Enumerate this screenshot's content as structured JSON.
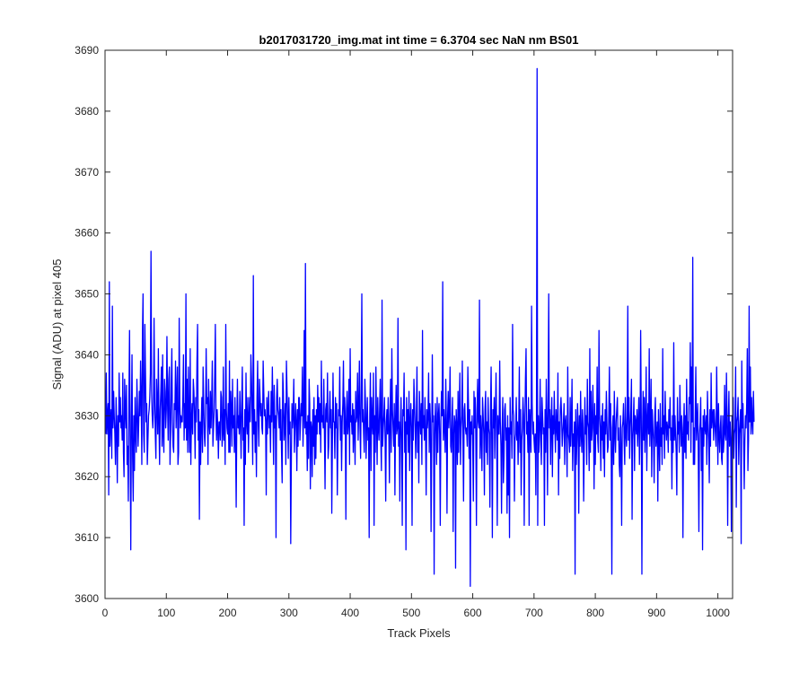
{
  "chart_data": {
    "type": "line",
    "title": "b2017031720_img.mat int time = 6.3704 sec  NaN nm BS01",
    "xlabel": "Track Pixels",
    "ylabel": "Signal (ADU) at pixel 405",
    "xlim": [
      0,
      1024
    ],
    "ylim": [
      3600,
      3690
    ],
    "x_ticks": [
      0,
      100,
      200,
      300,
      400,
      500,
      600,
      700,
      800,
      900,
      1000
    ],
    "y_ticks": [
      3600,
      3610,
      3620,
      3630,
      3640,
      3650,
      3660,
      3670,
      3680,
      3690
    ],
    "x_tick_labels": [
      "0",
      "100",
      "200",
      "300",
      "400",
      "500",
      "600",
      "700",
      "800",
      "900",
      "1000"
    ],
    "y_tick_labels": [
      "3600",
      "3610",
      "3620",
      "3630",
      "3640",
      "3650",
      "3660",
      "3670",
      "3680",
      "3690"
    ],
    "grid": false,
    "series": [
      {
        "color": "#0000ff",
        "x_start": 1,
        "x_step": 1,
        "values": [
          3627,
          3637,
          3627,
          3630,
          3632,
          3617,
          3652,
          3625,
          3629,
          3631,
          3623,
          3648,
          3628,
          3634,
          3630,
          3627,
          3622,
          3633,
          3628,
          3619,
          3630,
          3625,
          3637,
          3629,
          3633,
          3628,
          3630,
          3626,
          3637,
          3624,
          3620,
          3636,
          3631,
          3628,
          3635,
          3622,
          3625,
          3616,
          3633,
          3644,
          3626,
          3608,
          3629,
          3640,
          3623,
          3616,
          3630,
          3621,
          3633,
          3627,
          3624,
          3636,
          3631,
          3625,
          3629,
          3634,
          3630,
          3639,
          3633,
          3622,
          3643,
          3650,
          3627,
          3624,
          3645,
          3637,
          3629,
          3632,
          3622,
          3626,
          3630,
          3631,
          3633,
          3637,
          3657,
          3634,
          3630,
          3628,
          3631,
          3646,
          3633,
          3627,
          3623,
          3636,
          3632,
          3627,
          3641,
          3629,
          3622,
          3631,
          3634,
          3638,
          3625,
          3640,
          3627,
          3624,
          3636,
          3634,
          3628,
          3631,
          3643,
          3632,
          3626,
          3636,
          3638,
          3622,
          3627,
          3635,
          3641,
          3629,
          3625,
          3624,
          3632,
          3631,
          3639,
          3628,
          3633,
          3638,
          3622,
          3624,
          3646,
          3632,
          3628,
          3630,
          3629,
          3629,
          3633,
          3640,
          3626,
          3632,
          3628,
          3650,
          3626,
          3636,
          3624,
          3638,
          3629,
          3624,
          3641,
          3622,
          3629,
          3632,
          3627,
          3636,
          3634,
          3630,
          3623,
          3633,
          3629,
          3639,
          3645,
          3626,
          3631,
          3613,
          3629,
          3622,
          3629,
          3633,
          3624,
          3638,
          3632,
          3627,
          3625,
          3630,
          3641,
          3632,
          3633,
          3622,
          3636,
          3629,
          3627,
          3634,
          3628,
          3632,
          3639,
          3625,
          3628,
          3631,
          3637,
          3645,
          3630,
          3626,
          3631,
          3628,
          3623,
          3629,
          3629,
          3626,
          3634,
          3633,
          3625,
          3627,
          3638,
          3626,
          3631,
          3622,
          3645,
          3631,
          3628,
          3627,
          3632,
          3624,
          3639,
          3624,
          3634,
          3631,
          3625,
          3636,
          3628,
          3630,
          3624,
          3633,
          3626,
          3615,
          3629,
          3636,
          3628,
          3630,
          3627,
          3634,
          3629,
          3623,
          3632,
          3638,
          3626,
          3628,
          3612,
          3631,
          3622,
          3637,
          3629,
          3627,
          3633,
          3624,
          3630,
          3633,
          3629,
          3640,
          3636,
          3630,
          3622,
          3653,
          3627,
          3631,
          3624,
          3629,
          3620,
          3633,
          3639,
          3629,
          3625,
          3636,
          3633,
          3630,
          3632,
          3628,
          3627,
          3639,
          3634,
          3630,
          3631,
          3629,
          3617,
          3633,
          3627,
          3631,
          3634,
          3628,
          3630,
          3624,
          3634,
          3629,
          3638,
          3631,
          3622,
          3635,
          3628,
          3630,
          3610,
          3633,
          3636,
          3631,
          3630,
          3628,
          3633,
          3626,
          3631,
          3624,
          3619,
          3637,
          3634,
          3626,
          3628,
          3632,
          3622,
          3639,
          3634,
          3630,
          3623,
          3633,
          3627,
          3629,
          3609,
          3623,
          3632,
          3628,
          3630,
          3636,
          3624,
          3628,
          3632,
          3629,
          3621,
          3631,
          3625,
          3633,
          3633,
          3626,
          3629,
          3632,
          3630,
          3638,
          3625,
          3630,
          3644,
          3628,
          3655,
          3627,
          3629,
          3621,
          3630,
          3623,
          3636,
          3632,
          3618,
          3629,
          3628,
          3620,
          3631,
          3625,
          3633,
          3622,
          3630,
          3623,
          3631,
          3627,
          3635,
          3629,
          3633,
          3627,
          3632,
          3624,
          3639,
          3629,
          3630,
          3628,
          3636,
          3627,
          3618,
          3631,
          3632,
          3629,
          3637,
          3623,
          3625,
          3630,
          3634,
          3628,
          3631,
          3614,
          3626,
          3637,
          3629,
          3629,
          3623,
          3633,
          3628,
          3632,
          3617,
          3626,
          3631,
          3630,
          3638,
          3626,
          3630,
          3621,
          3629,
          3632,
          3639,
          3627,
          3633,
          3629,
          3613,
          3631,
          3634,
          3627,
          3629,
          3636,
          3622,
          3641,
          3629,
          3630,
          3627,
          3632,
          3624,
          3631,
          3628,
          3622,
          3634,
          3629,
          3630,
          3637,
          3626,
          3631,
          3639,
          3628,
          3623,
          3634,
          3650,
          3629,
          3631,
          3627,
          3624,
          3636,
          3632,
          3623,
          3629,
          3633,
          3626,
          3628,
          3610,
          3630,
          3637,
          3621,
          3633,
          3629,
          3627,
          3637,
          3612,
          3630,
          3624,
          3638,
          3629,
          3622,
          3633,
          3628,
          3626,
          3631,
          3636,
          3626,
          3621,
          3649,
          3625,
          3628,
          3630,
          3633,
          3626,
          3616,
          3629,
          3631,
          3627,
          3633,
          3628,
          3619,
          3630,
          3636,
          3624,
          3641,
          3631,
          3628,
          3625,
          3632,
          3617,
          3629,
          3635,
          3627,
          3628,
          3646,
          3625,
          3629,
          3616,
          3628,
          3633,
          3626,
          3612,
          3631,
          3630,
          3637,
          3624,
          3629,
          3608,
          3633,
          3627,
          3631,
          3624,
          3634,
          3621,
          3629,
          3632,
          3628,
          3612,
          3631,
          3626,
          3636,
          3632,
          3628,
          3623,
          3630,
          3638,
          3624,
          3629,
          3619,
          3634,
          3630,
          3627,
          3632,
          3622,
          3644,
          3628,
          3630,
          3626,
          3633,
          3627,
          3617,
          3631,
          3628,
          3630,
          3637,
          3624,
          3632,
          3629,
          3611,
          3625,
          3640,
          3629,
          3630,
          3604,
          3627,
          3632,
          3628,
          3622,
          3633,
          3624,
          3630,
          3632,
          3627,
          3612,
          3629,
          3634,
          3630,
          3652,
          3626,
          3631,
          3628,
          3624,
          3636,
          3629,
          3614,
          3630,
          3634,
          3628,
          3631,
          3638,
          3625,
          3624,
          3629,
          3633,
          3611,
          3627,
          3630,
          3629,
          3605,
          3631,
          3628,
          3622,
          3634,
          3624,
          3631,
          3637,
          3622,
          3628,
          3630,
          3639,
          3626,
          3616,
          3631,
          3632,
          3628,
          3627,
          3628,
          3625,
          3638,
          3632,
          3623,
          3631,
          3602,
          3629,
          3627,
          3630,
          3625,
          3616,
          3634,
          3628,
          3633,
          3627,
          3612,
          3631,
          3636,
          3629,
          3628,
          3649,
          3623,
          3630,
          3627,
          3621,
          3633,
          3630,
          3627,
          3617,
          3631,
          3634,
          3624,
          3629,
          3622,
          3633,
          3628,
          3627,
          3615,
          3631,
          3638,
          3626,
          3610,
          3631,
          3628,
          3633,
          3623,
          3630,
          3637,
          3628,
          3612,
          3630,
          3627,
          3627,
          3639,
          3629,
          3625,
          3614,
          3628,
          3633,
          3619,
          3623,
          3631,
          3632,
          3626,
          3628,
          3614,
          3630,
          3617,
          3628,
          3610,
          3633,
          3627,
          3629,
          3623,
          3645,
          3631,
          3630,
          3616,
          3626,
          3627,
          3633,
          3626,
          3629,
          3622,
          3628,
          3638,
          3624,
          3631,
          3617,
          3626,
          3628,
          3633,
          3630,
          3612,
          3628,
          3636,
          3641,
          3627,
          3629,
          3624,
          3633,
          3612,
          3631,
          3628,
          3624,
          3648,
          3632,
          3627,
          3629,
          3626,
          3624,
          3627,
          3617,
          3629,
          3687,
          3612,
          3630,
          3624,
          3628,
          3636,
          3626,
          3622,
          3633,
          3630,
          3627,
          3628,
          3612,
          3631,
          3624,
          3636,
          3629,
          3617,
          3632,
          3650,
          3628,
          3631,
          3622,
          3629,
          3633,
          3620,
          3630,
          3627,
          3634,
          3628,
          3624,
          3631,
          3628,
          3626,
          3637,
          3617,
          3629,
          3623,
          3631,
          3633,
          3630,
          3625,
          3627,
          3629,
          3632,
          3622,
          3629,
          3630,
          3626,
          3620,
          3638,
          3627,
          3626,
          3624,
          3633,
          3625,
          3629,
          3636,
          3621,
          3627,
          3625,
          3629,
          3604,
          3631,
          3622,
          3626,
          3632,
          3628,
          3614,
          3630,
          3625,
          3634,
          3627,
          3624,
          3631,
          3628,
          3616,
          3625,
          3633,
          3627,
          3630,
          3622,
          3636,
          3629,
          3628,
          3621,
          3641,
          3624,
          3634,
          3626,
          3628,
          3635,
          3629,
          3618,
          3632,
          3622,
          3630,
          3627,
          3638,
          3626,
          3624,
          3644,
          3630,
          3628,
          3621,
          3630,
          3626,
          3632,
          3623,
          3629,
          3620,
          3631,
          3627,
          3634,
          3629,
          3624,
          3625,
          3630,
          3638,
          3626,
          3632,
          3623,
          3604,
          3628,
          3630,
          3622,
          3634,
          3627,
          3624,
          3629,
          3631,
          3633,
          3626,
          3628,
          3622,
          3620,
          3630,
          3625,
          3612,
          3628,
          3629,
          3632,
          3626,
          3622,
          3633,
          3627,
          3625,
          3630,
          3648,
          3626,
          3633,
          3623,
          3628,
          3631,
          3636,
          3613,
          3626,
          3629,
          3633,
          3621,
          3630,
          3629,
          3627,
          3631,
          3625,
          3629,
          3633,
          3622,
          3628,
          3644,
          3630,
          3604,
          3627,
          3634,
          3626,
          3633,
          3624,
          3629,
          3638,
          3621,
          3629,
          3632,
          3627,
          3641,
          3625,
          3629,
          3636,
          3620,
          3631,
          3628,
          3626,
          3619,
          3630,
          3633,
          3625,
          3627,
          3629,
          3616,
          3631,
          3626,
          3621,
          3632,
          3625,
          3628,
          3622,
          3641,
          3627,
          3630,
          3623,
          3634,
          3629,
          3626,
          3629,
          3628,
          3624,
          3631,
          3628,
          3633,
          3626,
          3628,
          3618,
          3630,
          3624,
          3642,
          3626,
          3630,
          3627,
          3624,
          3617,
          3633,
          3627,
          3629,
          3624,
          3635,
          3629,
          3625,
          3630,
          3627,
          3610,
          3628,
          3632,
          3624,
          3630,
          3623,
          3636,
          3627,
          3629,
          3626,
          3633,
          3632,
          3642,
          3624,
          3638,
          3629,
          3656,
          3622,
          3628,
          3622,
          3630,
          3638,
          3626,
          3629,
          3632,
          3624,
          3611,
          3627,
          3629,
          3633,
          3621,
          3628,
          3608,
          3630,
          3625,
          3631,
          3628,
          3627,
          3630,
          3622,
          3634,
          3629,
          3626,
          3619,
          3631,
          3625,
          3637,
          3628,
          3630,
          3631,
          3626,
          3631,
          3629,
          3627,
          3625,
          3638,
          3630,
          3622,
          3632,
          3627,
          3624,
          3628,
          3630,
          3623,
          3622,
          3630,
          3624,
          3626,
          3635,
          3627,
          3626,
          3637,
          3630,
          3612,
          3628,
          3634,
          3625,
          3629,
          3626,
          3611,
          3630,
          3627,
          3633,
          3623,
          3627,
          3628,
          3638,
          3615,
          3629,
          3630,
          3633,
          3622,
          3627,
          3629,
          3631,
          3609,
          3639,
          3628,
          3632,
          3626,
          3618,
          3626,
          3630,
          3628,
          3632,
          3641,
          3621,
          3626,
          3648,
          3629,
          3638,
          3627,
          3633,
          3629,
          3627,
          3634,
          3629
        ]
      }
    ]
  }
}
